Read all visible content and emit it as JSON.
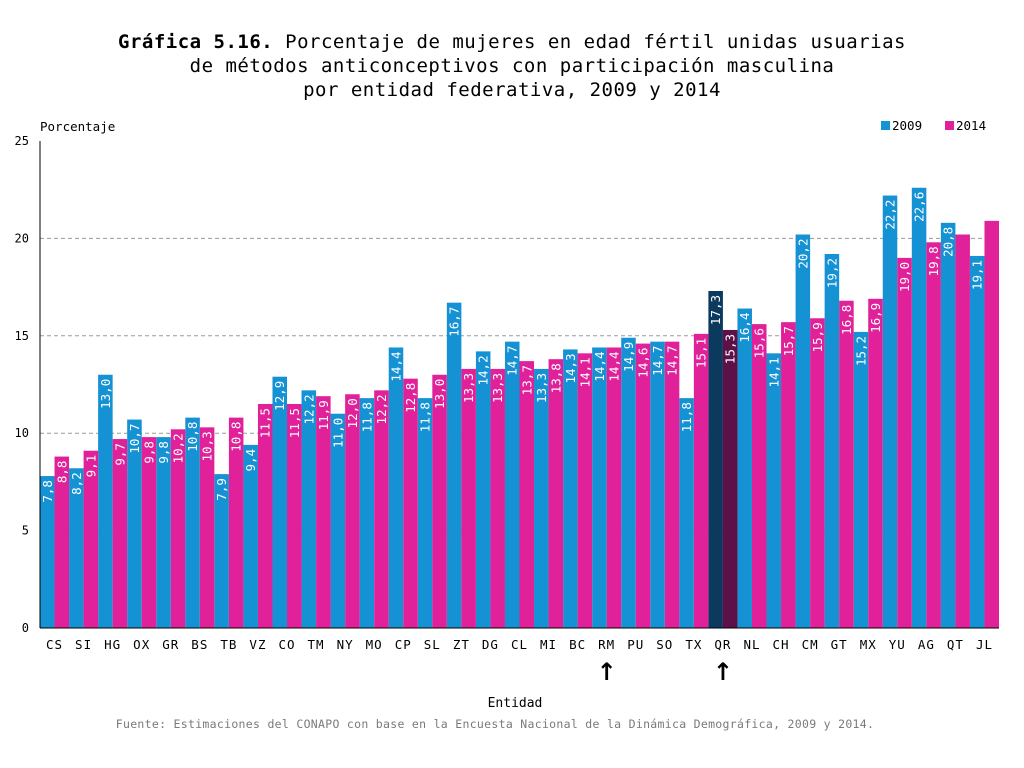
{
  "title": {
    "prefix": "Gráfica 5.16.",
    "line1": "Porcentaje de mujeres en edad fértil unidas usuarias",
    "line2": "de métodos anticonceptivos con participación masculina",
    "line3": "por entidad federativa, 2009 y 2014"
  },
  "source": "Fuente: Estimaciones del CONAPO con base en la Encuesta Nacional de la Dinámica Demográfica, 2009 y 2014.",
  "colors": {
    "s2009": "#1592d4",
    "s2014": "#e0219a",
    "highlight2009": "#0b3a5e",
    "highlight2014": "#5e1048",
    "grid": "#9a9a9a",
    "value_label": "#ffffff",
    "arrow": "#000000"
  },
  "chart_data": {
    "type": "bar",
    "title": "Porcentaje de mujeres en edad fértil unidas usuarias de métodos anticonceptivos con participación masculina por entidad federativa, 2009 y 2014",
    "xlabel": "Entidad",
    "ylabel": "Porcentaje",
    "ylim": [
      0,
      25
    ],
    "yticks": [
      0,
      5,
      10,
      15,
      20,
      25
    ],
    "grid": true,
    "legend_position": "top-right",
    "categories": [
      "CS",
      "SI",
      "HG",
      "OX",
      "GR",
      "BS",
      "TB",
      "VZ",
      "CO",
      "TM",
      "NY",
      "MO",
      "CP",
      "SL",
      "ZT",
      "DG",
      "CL",
      "MI",
      "BC",
      "RM",
      "PU",
      "SO",
      "TX",
      "QR",
      "NL",
      "CH",
      "CM",
      "GT",
      "MX",
      "YU",
      "AG",
      "QT",
      "JL"
    ],
    "series": [
      {
        "name": "2009",
        "values": [
          7.8,
          8.2,
          13.0,
          10.7,
          9.8,
          10.8,
          7.9,
          9.4,
          12.9,
          12.2,
          11.0,
          11.8,
          14.4,
          11.8,
          16.7,
          14.2,
          14.7,
          13.3,
          14.3,
          14.4,
          14.9,
          14.7,
          11.8,
          17.3,
          16.4,
          14.1,
          20.2,
          19.2,
          15.2,
          22.2,
          22.6,
          20.8,
          19.1
        ]
      },
      {
        "name": "2014",
        "values": [
          8.8,
          9.1,
          9.7,
          9.8,
          10.2,
          10.3,
          10.8,
          11.5,
          11.5,
          11.9,
          12.0,
          12.2,
          12.8,
          13.0,
          13.3,
          13.3,
          13.7,
          13.8,
          14.1,
          14.4,
          14.6,
          14.7,
          15.1,
          15.3,
          15.6,
          15.7,
          15.9,
          16.8,
          16.9,
          19.0,
          19.8,
          20.2,
          20.9
        ]
      }
    ],
    "value_labels": [
      [
        "7,8",
        "8,2",
        "13,0",
        "10,7",
        "9,8",
        "10,8",
        "7,9",
        "9,4",
        "12,9",
        "12,2",
        "11,0",
        "11,8",
        "14,4",
        "11,8",
        "16,7",
        "14,2",
        "14,7",
        "13,3",
        "14,3",
        "14,4",
        "14,9",
        "14,7",
        "11,8",
        "17,3",
        "16,4",
        "14,1",
        "20,2",
        "19,2",
        "15,2",
        "22,2",
        "22,6",
        "20,8",
        "19,1"
      ],
      [
        "8,8",
        "9,1",
        "9,7",
        "9,8",
        "10,2",
        "10,3",
        "10,8",
        "11,5",
        "11,5",
        "11,9",
        "12,0",
        "12,2",
        "12,8",
        "13,0",
        "13,3",
        "13,3",
        "13,7",
        "13,8",
        "14,1",
        "14,4",
        "14,6",
        "14,7",
        "15,1",
        "15,3",
        "15,6",
        "15,7",
        "15,9",
        "16,8",
        "16,9",
        "19,0",
        "19,8",
        "20,2",
        "20,9"
      ]
    ],
    "hidden_value_labels": [
      [],
      [
        31,
        32
      ]
    ],
    "highlighted_category": "QR",
    "annotations": [
      {
        "type": "arrow",
        "target_category": "RM",
        "glyph": "↑"
      },
      {
        "type": "arrow",
        "target_category": "QR",
        "glyph": "↑"
      }
    ]
  }
}
